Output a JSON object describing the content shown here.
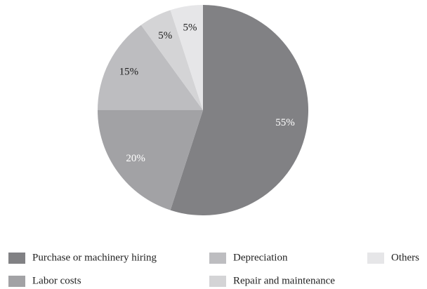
{
  "chart_data": {
    "type": "pie",
    "series": [
      {
        "name": "Purchase or machinery hiring",
        "color": "#818184",
        "values": [
          55
        ],
        "value_labels": [
          "55%"
        ],
        "label_color": "#ffffff"
      },
      {
        "name": "Labor costs",
        "color": "#a2a2a5",
        "values": [
          20
        ],
        "value_labels": [
          "20%"
        ],
        "label_color": "#ffffff"
      },
      {
        "name": "Depreciation",
        "color": "#bdbdc0",
        "values": [
          15
        ],
        "value_labels": [
          "15%"
        ],
        "label_color": "#222222"
      },
      {
        "name": "Repair and maintenance",
        "color": "#d4d4d6",
        "values": [
          5
        ],
        "value_labels": [
          "5%"
        ],
        "label_color": "#222222"
      },
      {
        "name": "Others",
        "color": "#e6e6e8",
        "values": [
          5
        ],
        "value_labels": [
          "5%"
        ],
        "label_color": "#222222"
      }
    ],
    "legend": "bottom"
  }
}
